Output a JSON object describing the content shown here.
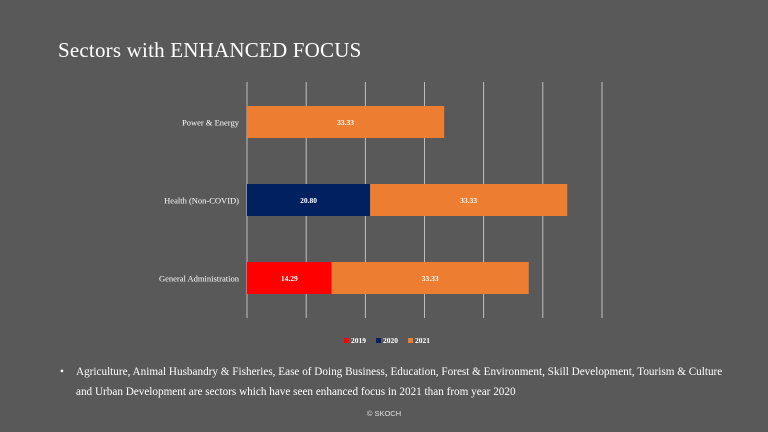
{
  "slide": {
    "title": "Sectors with ENHANCED FOCUS",
    "bullet_marker": "•",
    "bullet_text": "Agriculture, Animal Husbandry & Fisheries, Ease of Doing Business, Education, Forest & Environment, Skill Development, Tourism & Culture and Urban Development are sectors which have seen enhanced focus in 2021 than from year 2020",
    "footer": "© SKOCH"
  },
  "chart_data": {
    "type": "bar",
    "orientation": "horizontal",
    "stacked": true,
    "categories": [
      "Power & Energy",
      "Health (Non-COVID)",
      "General Administration"
    ],
    "series": [
      {
        "name": "2019",
        "color": "#ff0000",
        "values": [
          null,
          null,
          14.29
        ]
      },
      {
        "name": "2020",
        "color": "#002060",
        "values": [
          null,
          20.8,
          null
        ]
      },
      {
        "name": "2021",
        "color": "#ed7d31",
        "values": [
          33.33,
          33.33,
          33.33
        ]
      }
    ],
    "data_labels": [
      [
        "",
        "",
        "33.33"
      ],
      [
        "",
        "20.80",
        "33.33"
      ],
      [
        "14.29",
        "",
        "33.33"
      ]
    ],
    "xlim": [
      0,
      60
    ],
    "grid": true,
    "legend_position": "bottom",
    "colors": {
      "background": "#595959",
      "grid": "#d9d9d9"
    }
  }
}
